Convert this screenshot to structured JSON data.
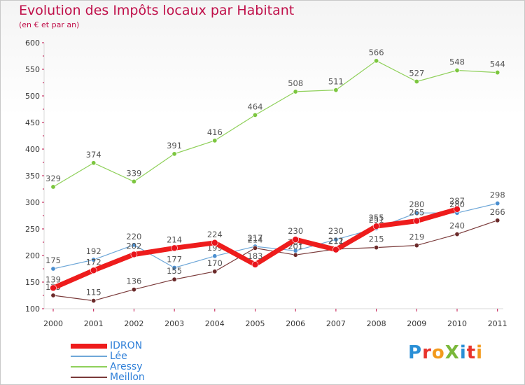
{
  "header": {
    "title": "Evolution des Impôts locaux par Habitant",
    "subtitle": "(en € et par an)"
  },
  "logo": {
    "text": "ProXiti",
    "letters": [
      {
        "ch": "P",
        "color": "#2a8fd6"
      },
      {
        "ch": "r",
        "color": "#e8342c"
      },
      {
        "ch": "o",
        "color": "#f29a1d"
      },
      {
        "ch": "X",
        "color": "#7ab83a"
      },
      {
        "ch": "i",
        "color": "#2a8fd6"
      },
      {
        "ch": "t",
        "color": "#e8342c"
      },
      {
        "ch": "i",
        "color": "#f29a1d"
      }
    ]
  },
  "chart_data": {
    "type": "line",
    "title": "Evolution des Impôts locaux par Habitant",
    "subtitle": "(en € et par an)",
    "xlabel": "",
    "ylabel": "",
    "categories": [
      "2000",
      "2001",
      "2002",
      "2003",
      "2004",
      "2005",
      "2006",
      "2007",
      "2008",
      "2009",
      "2010",
      "2011"
    ],
    "ylim": [
      100,
      600
    ],
    "yticks": [
      100,
      150,
      200,
      250,
      300,
      350,
      400,
      450,
      500,
      550,
      600
    ],
    "grid": false,
    "legend_position": "bottom-left",
    "series": [
      {
        "name": "Aressy",
        "color": "#8fd05a",
        "marker": "#7cc63f",
        "width": 1.2,
        "values": [
          329,
          374,
          339,
          391,
          416,
          464,
          508,
          511,
          566,
          527,
          548,
          544
        ],
        "labels": [
          "329",
          "374",
          "339",
          "391",
          "416",
          "464",
          "508",
          "511",
          "566",
          "527",
          "548",
          "544"
        ]
      },
      {
        "name": "Lée",
        "color": "#6ea7d8",
        "marker": "#4b8fd0",
        "width": 1.2,
        "values": [
          175,
          192,
          220,
          177,
          199,
          217,
          209,
          230,
          251,
          280,
          280,
          298
        ],
        "labels": [
          "175",
          "192",
          "220",
          "177",
          "199",
          "217",
          "209",
          "230",
          "251",
          "280",
          "280",
          "298"
        ]
      },
      {
        "name": "Meillon",
        "color": "#7a3a3a",
        "marker": "#6b2a2a",
        "width": 1.2,
        "values": [
          125,
          115,
          136,
          155,
          170,
          214,
          201,
          212,
          215,
          219,
          240,
          266
        ],
        "labels": [
          "125",
          "115",
          "136",
          "155",
          "170",
          "214",
          "201",
          "212",
          "215",
          "219",
          "240",
          "266"
        ]
      },
      {
        "name": "IDRON",
        "color": "#ee1c1c",
        "marker": "#e8141c",
        "width": 7,
        "values": [
          139,
          172,
          202,
          214,
          224,
          183,
          230,
          211,
          255,
          265,
          287,
          null
        ],
        "labels": [
          "139",
          "172",
          "202",
          "214",
          "224",
          "183",
          "230",
          "211",
          "255",
          "265",
          "287",
          ""
        ]
      }
    ],
    "legend_order": [
      "IDRON",
      "Lée",
      "Aressy",
      "Meillon"
    ]
  }
}
